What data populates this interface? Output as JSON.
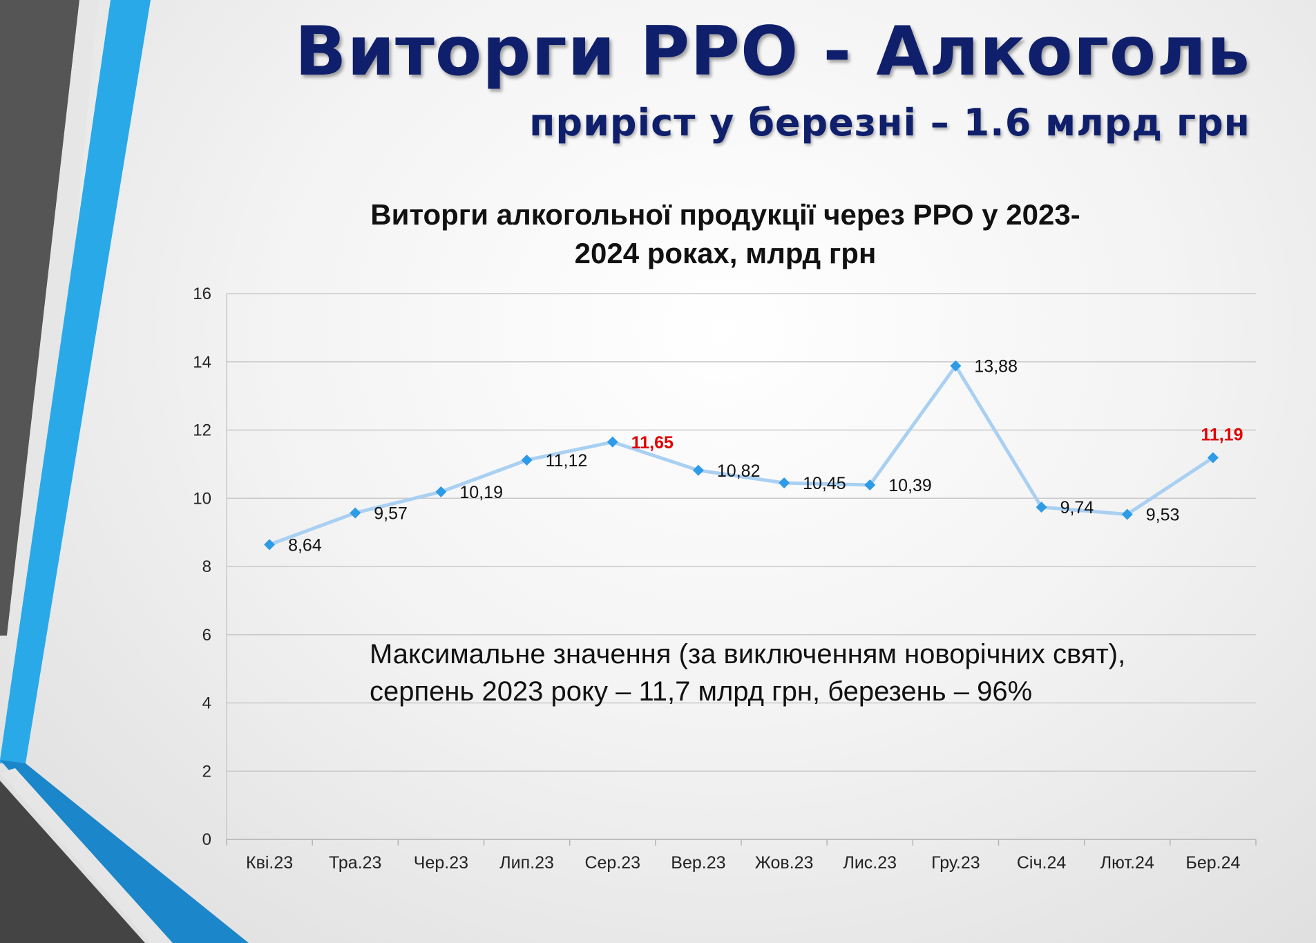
{
  "header": {
    "title": "Виторги РРО - Алкоголь",
    "subtitle": "приріст у березні – 1.6 млрд грн"
  },
  "annotation": {
    "line1": "Максимальне значення (за виключенням новорічних свят),",
    "line2": "серпень 2023 року – 11,7 млрд грн, березень – 96%"
  },
  "colors": {
    "title": "#0f1f6b",
    "line": "#a9d0f2",
    "marker": "#2d9be6",
    "highlight_label": "#e00000",
    "grid": "#c9c9c9"
  },
  "chart_data": {
    "type": "line",
    "title_line1": "Виторги алкогольної продукції через РРО у 2023-",
    "title_line2": "2024 роках, млрд грн",
    "categories": [
      "Кві.23",
      "Тра.23",
      "Чер.23",
      "Лип.23",
      "Сер.23",
      "Вер.23",
      "Жов.23",
      "Лис.23",
      "Гру.23",
      "Січ.24",
      "Лют.24",
      "Бер.24"
    ],
    "series": [
      {
        "values": [
          8.64,
          9.57,
          10.19,
          11.12,
          11.65,
          10.82,
          10.45,
          10.39,
          13.88,
          9.74,
          9.53,
          11.19
        ],
        "labels": [
          "8,64",
          "9,57",
          "10,19",
          "11,12",
          "11,65",
          "10,82",
          "10,45",
          "10,39",
          "13,88",
          "9,74",
          "9,53",
          "11,19"
        ],
        "highlighted": [
          4,
          11
        ]
      }
    ],
    "ylim": [
      0,
      16
    ],
    "yticks": [
      0,
      2,
      4,
      6,
      8,
      10,
      12,
      14,
      16
    ],
    "grid": true,
    "legend": "none"
  }
}
